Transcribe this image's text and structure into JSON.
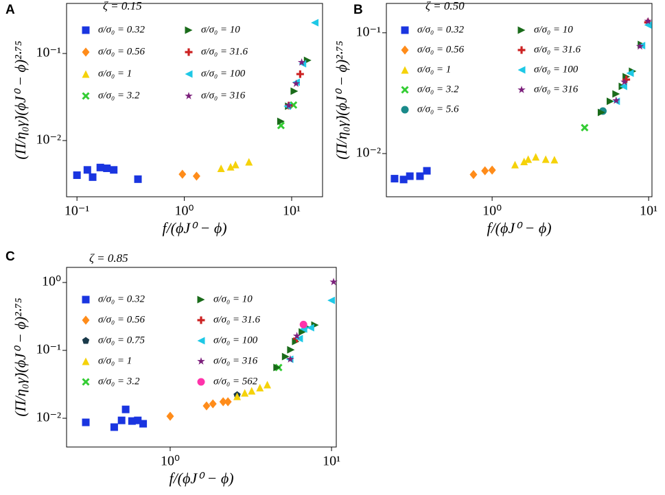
{
  "chart_data": [
    {
      "type": "scatter",
      "panel_label": "A",
      "title": "ζ = 0.15",
      "log_x": true,
      "log_y": true,
      "x_label": "f/(ϕJ⁰ − ϕ)",
      "y_label": "(Π/η₀γ̇)(ϕJ⁰ − ϕ)²·⁷⁵",
      "xlim": [
        0.08,
        19.4
      ],
      "ylim": [
        0.00226,
        0.376
      ],
      "xticks": [
        {
          "value": 0.1,
          "label": "10⁻¹"
        },
        {
          "value": 1,
          "label": "10⁰"
        },
        {
          "value": 10,
          "label": "10¹"
        }
      ],
      "yticks": [
        {
          "value": 0.01,
          "label": "10⁻²"
        },
        {
          "value": 0.1,
          "label": "10⁻¹"
        }
      ],
      "series": [
        {
          "name": "σ/σ₀ = 0.32",
          "color": "#1a35e0",
          "marker": "square",
          "x": [
            0.1,
            0.125,
            0.14,
            0.165,
            0.19,
            0.22,
            0.37
          ],
          "values": [
            0.004,
            0.0046,
            0.0038,
            0.0049,
            0.0048,
            0.0046,
            0.0036
          ]
        },
        {
          "name": "σ/σ₀ = 0.56",
          "color": "#ff8c1a",
          "marker": "diamond",
          "x": [
            0.96,
            1.3
          ],
          "values": [
            0.0041,
            0.0039
          ]
        },
        {
          "name": "σ/σ₀ = 1",
          "color": "#f5d20a",
          "marker": "triangle-up",
          "x": [
            2.2,
            2.7,
            3.0,
            4.0
          ],
          "values": [
            0.0048,
            0.005,
            0.0053,
            0.0057
          ]
        },
        {
          "name": "σ/σ₀ = 3.2",
          "color": "#33cc33",
          "marker": "x",
          "x": [
            7.95,
            10.4
          ],
          "values": [
            0.0149,
            0.0256
          ]
        },
        {
          "name": "σ/σ₀ = 10",
          "color": "#1a6b1a",
          "marker": "triangle-right",
          "x": [
            7.95,
            9.4,
            10.6,
            14.1
          ],
          "values": [
            0.0166,
            0.0248,
            0.0369,
            0.0834
          ]
        },
        {
          "name": "σ/σ₀ = 31.6",
          "color": "#cc2222",
          "marker": "plus",
          "x": [
            9.4,
            12.0
          ],
          "values": [
            0.0252,
            0.058
          ]
        },
        {
          "name": "σ/σ₀ = 100",
          "color": "#1ec8e6",
          "marker": "triangle-left",
          "x": [
            9.1,
            11.0,
            12.6,
            16.4
          ],
          "values": [
            0.0248,
            0.0467,
            0.0762,
            0.226
          ]
        },
        {
          "name": "σ/σ₀ = 316",
          "color": "#7b1f7b",
          "marker": "star",
          "x": [
            9.4,
            11.0,
            12.4
          ],
          "values": [
            0.0252,
            0.0451,
            0.0791
          ]
        }
      ]
    },
    {
      "type": "scatter",
      "panel_label": "B",
      "title": "ζ = 0.50",
      "log_x": true,
      "log_y": true,
      "x_label": "f/(ϕJ⁰ − ϕ)",
      "y_label": "(Π/η₀γ̇)(ϕJ⁰ − ϕ)²·⁷⁵",
      "xlim": [
        0.211,
        10.5
      ],
      "ylim": [
        0.00439,
        0.175
      ],
      "xticks": [
        {
          "value": 1,
          "label": "10⁰"
        },
        {
          "value": 10,
          "label": "10¹"
        }
      ],
      "yticks": [
        {
          "value": 0.01,
          "label": "10⁻²"
        },
        {
          "value": 0.1,
          "label": "10⁻¹"
        }
      ],
      "series": [
        {
          "name": "σ/σ₀ = 0.32",
          "color": "#1a35e0",
          "marker": "square",
          "x": [
            0.238,
            0.272,
            0.298,
            0.346,
            0.383
          ],
          "values": [
            0.0062,
            0.0061,
            0.0065,
            0.0065,
            0.0072
          ]
        },
        {
          "name": "σ/σ₀ = 0.56",
          "color": "#ff8c1a",
          "marker": "diamond",
          "x": [
            0.76,
            0.9,
            1.0
          ],
          "values": [
            0.0067,
            0.0072,
            0.0073
          ]
        },
        {
          "name": "σ/σ₀ = 1",
          "color": "#f5d20a",
          "marker": "triangle-up",
          "x": [
            1.4,
            1.6,
            1.7,
            1.9,
            2.2,
            2.5
          ],
          "values": [
            0.0081,
            0.0086,
            0.009,
            0.0094,
            0.009,
            0.0089
          ]
        },
        {
          "name": "σ/σ₀ = 3.2",
          "color": "#33cc33",
          "marker": "x",
          "x": [
            3.9
          ],
          "values": [
            0.0164
          ]
        },
        {
          "name": "σ/σ₀ = 5.6",
          "color": "#1a8a8a",
          "marker": "circle",
          "x": [
            5.1
          ],
          "values": [
            0.0225
          ]
        },
        {
          "name": "σ/σ₀ = 10",
          "color": "#1a6b1a",
          "marker": "triangle-right",
          "x": [
            5.0,
            5.7,
            6.2,
            6.8,
            7.2,
            7.9,
            9.0
          ],
          "values": [
            0.0219,
            0.0271,
            0.0312,
            0.036,
            0.0433,
            0.0481,
            0.08
          ]
        },
        {
          "name": "σ/σ₀ = 31.6",
          "color": "#cc2222",
          "marker": "plus",
          "x": [
            7.2,
            9.9
          ],
          "values": [
            0.041,
            0.122
          ]
        },
        {
          "name": "σ/σ₀ = 100",
          "color": "#1ec8e6",
          "marker": "triangle-left",
          "x": [
            6.2,
            6.9,
            7.6,
            9.0,
            9.9
          ],
          "values": [
            0.0271,
            0.036,
            0.0463,
            0.0783,
            0.116
          ]
        },
        {
          "name": "σ/σ₀ = 316",
          "color": "#7b1f7b",
          "marker": "star",
          "x": [
            6.2,
            7.0,
            8.8,
            9.9
          ],
          "values": [
            0.0275,
            0.0392,
            0.0772,
            0.125
          ]
        }
      ]
    },
    {
      "type": "scatter",
      "panel_label": "C",
      "title": "ζ = 0.85",
      "log_x": true,
      "log_y": true,
      "x_label": "f/(ϕJ⁰ − ϕ)",
      "y_label": "(Π/η₀γ̇)(ϕJ⁰ − ϕ)²·⁷⁵",
      "xlim": [
        0.228,
        10.7
      ],
      "ylim": [
        0.00377,
        1.67
      ],
      "xticks": [
        {
          "value": 1,
          "label": "10⁰"
        },
        {
          "value": 10,
          "label": "10¹"
        }
      ],
      "yticks": [
        {
          "value": 0.01,
          "label": "10⁻²"
        },
        {
          "value": 0.1,
          "label": "10⁻¹"
        },
        {
          "value": 1,
          "label": "10⁰"
        }
      ],
      "series": [
        {
          "name": "σ/σ₀ = 0.32",
          "color": "#1a35e0",
          "marker": "square",
          "x": [
            0.3,
            0.45,
            0.5,
            0.53,
            0.58,
            0.63,
            0.68
          ],
          "values": [
            0.0087,
            0.0074,
            0.0093,
            0.0135,
            0.0091,
            0.0093,
            0.0083
          ]
        },
        {
          "name": "σ/σ₀ = 0.56",
          "color": "#ff8c1a",
          "marker": "diamond",
          "x": [
            1.0,
            1.68,
            1.84,
            2.13,
            2.28
          ],
          "values": [
            0.0107,
            0.0152,
            0.0163,
            0.0175,
            0.0175
          ]
        },
        {
          "name": "σ/σ₀ = 0.75",
          "color": "#1a3a4a",
          "marker": "pentagon",
          "x": [
            2.6
          ],
          "values": [
            0.022
          ]
        },
        {
          "name": "σ/σ₀ = 1",
          "color": "#f5d20a",
          "marker": "triangle-up",
          "x": [
            2.6,
            2.9,
            3.2,
            3.6,
            4.0
          ],
          "values": [
            0.021,
            0.0237,
            0.0254,
            0.0283,
            0.0313
          ]
        },
        {
          "name": "σ/σ₀ = 3.2",
          "color": "#33cc33",
          "marker": "x",
          "x": [
            4.7
          ],
          "values": [
            0.0559
          ]
        },
        {
          "name": "σ/σ₀ = 10",
          "color": "#1a6b1a",
          "marker": "triangle-right",
          "x": [
            4.6,
            5.2,
            5.6,
            6.0,
            6.6,
            7.0,
            7.9
          ],
          "values": [
            0.0559,
            0.081,
            0.102,
            0.135,
            0.187,
            0.22,
            0.236
          ]
        },
        {
          "name": "σ/σ₀ = 31.6",
          "color": "#cc2222",
          "marker": "plus",
          "x": [
            6.1
          ],
          "values": [
            0.149
          ]
        },
        {
          "name": "σ/σ₀ = 100",
          "color": "#1ec8e6",
          "marker": "triangle-left",
          "x": [
            5.5,
            6.3,
            6.7,
            7.4,
            9.95
          ],
          "values": [
            0.074,
            0.149,
            0.206,
            0.216,
            0.546
          ]
        },
        {
          "name": "σ/σ₀ = 316",
          "color": "#7b1f7b",
          "marker": "star",
          "x": [
            5.55,
            6.1,
            10.3
          ],
          "values": [
            0.074,
            0.163,
            1.02
          ]
        },
        {
          "name": "σ/σ₀ = 562",
          "color": "#ff33aa",
          "marker": "circle",
          "x": [
            6.7
          ],
          "values": [
            0.24
          ]
        }
      ]
    }
  ]
}
